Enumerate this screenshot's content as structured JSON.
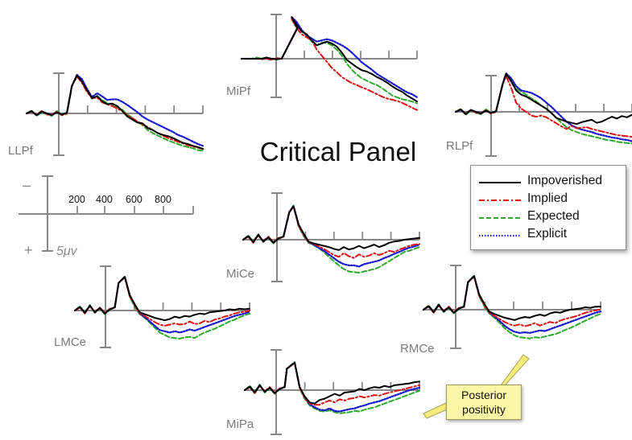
{
  "chart_data": {
    "type": "line",
    "title": "Critical Panel",
    "series": [
      {
        "name": "Impoverished",
        "color": "#000000",
        "dash": "solid"
      },
      {
        "name": "Implied",
        "color": "#dd1111",
        "dash": "dashdot"
      },
      {
        "name": "Expected",
        "color": "#2ea82e",
        "dash": "dashed"
      },
      {
        "name": "Explicit",
        "color": "#1a1acc",
        "dash": "dotted"
      }
    ],
    "scale_panel": {
      "negative_sign": "–",
      "positive_sign": "+",
      "amplitude_label": "5μv",
      "time_ticks": [
        "200",
        "400",
        "600",
        "800"
      ]
    },
    "annotation": {
      "line1": "Posterior",
      "line2": "positivity"
    },
    "electrodes": [
      {
        "label": "MiPf",
        "Impoverished": [
          0,
          0,
          0,
          0,
          0,
          -0.2,
          0,
          0.1,
          0,
          -5,
          -6.8,
          -5.5,
          -4.5,
          -4,
          -3,
          -2.2,
          -2.5,
          -2.8,
          -2.5,
          -2,
          -1,
          0.2,
          0.8,
          1.4,
          1.9,
          2.1,
          2.5,
          3,
          3.4,
          3.9,
          4.5,
          5,
          5.4,
          6,
          6.5,
          7
        ],
        "Implied": [
          0,
          0,
          0,
          0,
          0.1,
          0,
          0.2,
          -0.1,
          0,
          -5,
          -6.5,
          -5,
          -4,
          -3.5,
          -3,
          -1.5,
          -0.5,
          0.5,
          1.5,
          2.2,
          3,
          3.5,
          4,
          4.3,
          4.7,
          5,
          5.4,
          5.8,
          6.2,
          6.5,
          6.7,
          6.9,
          7.2,
          7.6,
          8,
          8.4
        ],
        "Expected": [
          0,
          0,
          0,
          -0.2,
          0,
          0,
          0.1,
          0,
          0,
          -5,
          -6.8,
          -5.8,
          -4.4,
          -3.8,
          -2.8,
          -2.2,
          -2.6,
          -2.6,
          -2.2,
          -1.5,
          -0.5,
          0.8,
          1.8,
          2.6,
          3.2,
          3.6,
          4,
          4.3,
          4.8,
          5.4,
          6,
          6.3,
          6.6,
          6.8,
          7,
          7.3
        ],
        "Explicit": [
          0,
          0,
          0,
          0,
          0,
          0,
          0,
          0,
          0,
          -5,
          -6.8,
          -6,
          -4.7,
          -3.8,
          -3.3,
          -2.8,
          -3,
          -3.2,
          -3,
          -2.6,
          -2.2,
          -1.7,
          -1,
          -0.2,
          0.6,
          1.2,
          1.8,
          2.5,
          3,
          3.5,
          4,
          4.5,
          5,
          5.5,
          5.8,
          6.3
        ]
      },
      {
        "label": "LLPf",
        "Impoverished": [
          0,
          -0.4,
          0.3,
          -0.3,
          0,
          0.3,
          -0.2,
          0.2,
          -0.1,
          -4.5,
          -6.2,
          -5.2,
          -3.8,
          -2.5,
          -2.8,
          -2,
          -1.5,
          -1.6,
          -1.2,
          -0.4,
          0.5,
          1,
          1.5,
          1.6,
          2.4,
          2.7,
          3.2,
          3.5,
          3.7,
          4,
          4.4,
          4.8,
          5,
          5.3,
          5.5,
          5.8
        ],
        "Implied": [
          0,
          -0.3,
          0.2,
          -0.4,
          0.2,
          0.2,
          -0.3,
          0.3,
          0,
          -4.5,
          -6,
          -5,
          -3.5,
          -2.5,
          -2.6,
          -1.8,
          -1.5,
          -1.2,
          -0.8,
          -0.4,
          0.3,
          0.8,
          1.3,
          1.8,
          2.2,
          2.7,
          3.2,
          3.6,
          4,
          4.3,
          4.6,
          4.9,
          5.2,
          5.4,
          5.6,
          5.8
        ],
        "Expected": [
          0,
          -0.5,
          0.4,
          -0.2,
          0.1,
          0.4,
          -0.4,
          0.1,
          0.1,
          -4.5,
          -6.3,
          -5.3,
          -3.8,
          -2.4,
          -2.9,
          -2.2,
          -1.7,
          -1.5,
          -1,
          -0.6,
          0.2,
          0.7,
          1.4,
          1.9,
          2.7,
          3.2,
          3.6,
          4,
          4.4,
          4.7,
          5,
          5.3,
          5.5,
          5.7,
          6,
          6.1
        ],
        "Explicit": [
          0,
          -0.3,
          0.3,
          -0.3,
          0,
          0.2,
          -0.2,
          0.2,
          -0.1,
          -4.5,
          -6.3,
          -5.6,
          -4,
          -2.7,
          -3.3,
          -2.8,
          -2.2,
          -2.3,
          -2.3,
          -1.9,
          -1.4,
          -0.8,
          -0.2,
          0.5,
          1,
          1.4,
          1.8,
          2.2,
          2.6,
          3,
          3.5,
          3.8,
          4.2,
          4.6,
          5,
          5.3
        ]
      },
      {
        "label": "RLPf",
        "Impoverished": [
          0,
          -0.4,
          0.4,
          -0.3,
          0,
          0.3,
          -0.2,
          0.2,
          -0.1,
          -4.5,
          -6.2,
          -5,
          -3.5,
          -2.8,
          -2.5,
          -2,
          -1.5,
          -1,
          -0.5,
          0.2,
          1,
          1.3,
          1.6,
          1.8,
          2,
          1.7,
          1.5,
          1.3,
          1.8,
          1.6,
          1.2,
          0.8,
          1.1,
          0.7,
          0.9,
          0.5
        ],
        "Implied": [
          0,
          -0.4,
          0.3,
          -0.3,
          0.2,
          0.2,
          -0.3,
          0.3,
          0,
          -4.5,
          -5.8,
          -4,
          -1.5,
          -0.5,
          0,
          0.6,
          0.8,
          0.6,
          0.9,
          1.4,
          1.9,
          2.4,
          2.8,
          2.3,
          2.7,
          2.6,
          2.5,
          2.8,
          3,
          3.2,
          3.4,
          3.6,
          3.8,
          3.9,
          4,
          4.1
        ],
        "Expected": [
          0,
          -0.5,
          0.5,
          -0.2,
          0.1,
          0.4,
          -0.4,
          0.1,
          0.1,
          -4.5,
          -6.3,
          -5.2,
          -3.8,
          -3.3,
          -2.8,
          -2.2,
          -1.7,
          -1,
          -0.5,
          0.2,
          1,
          1.8,
          2.5,
          3,
          3.3,
          3.6,
          3.8,
          4,
          4.2,
          4.4,
          4.6,
          4.7,
          4.9,
          5,
          5.1,
          5.2
        ],
        "Explicit": [
          0,
          -0.3,
          0.3,
          -0.3,
          0,
          0.2,
          -0.2,
          0.2,
          -0.1,
          -4.5,
          -6.3,
          -5.5,
          -4.2,
          -3.5,
          -3.3,
          -3.1,
          -2.7,
          -2.2,
          -1.5,
          -0.8,
          0,
          0.8,
          1.6,
          2.2,
          2.6,
          2.9,
          3.1,
          3.3,
          3.6,
          3.8,
          4,
          4.2,
          4.3,
          4.5,
          4.6,
          4.8
        ]
      },
      {
        "label": "MiCe",
        "Impoverished": [
          0,
          -0.6,
          0.4,
          -0.8,
          0.3,
          -0.4,
          0.5,
          -0.2,
          -0.5,
          -4.5,
          -5.5,
          -2.5,
          -1,
          0.3,
          0.6,
          0.8,
          1,
          1.2,
          1.5,
          1.7,
          1.2,
          1.6,
          1.4,
          1,
          1.4,
          1.1,
          0.8,
          1.2,
          0.9,
          0.5,
          0.3,
          0.2,
          0,
          -0.1,
          -0.2,
          -0.3
        ],
        "Implied": [
          0,
          -0.5,
          0.5,
          -0.7,
          0.2,
          -0.5,
          0.4,
          -0.3,
          -0.4,
          -4.5,
          -5.4,
          -2.3,
          -0.8,
          0.4,
          0.7,
          1.1,
          1.5,
          2,
          2.5,
          2.8,
          2.2,
          2.7,
          3,
          2.4,
          2.8,
          2.6,
          2.2,
          2.5,
          2.2,
          1.8,
          2,
          1.6,
          1.3,
          1,
          0.8,
          0.7
        ],
        "Expected": [
          0,
          -0.7,
          0.3,
          -0.9,
          0.4,
          -0.3,
          0.6,
          -0.1,
          -0.6,
          -4.5,
          -5.6,
          -2.2,
          -0.6,
          0.5,
          0.9,
          1.4,
          2,
          2.8,
          3.5,
          4.2,
          4.8,
          5.2,
          5.3,
          5.4,
          5.2,
          5,
          4.8,
          4.5,
          4,
          3.5,
          3,
          2.5,
          2,
          1.8,
          1.5,
          1.2
        ],
        "Explicit": [
          0,
          -0.5,
          0.4,
          -0.8,
          0.3,
          -0.4,
          0.5,
          -0.2,
          -0.5,
          -4.5,
          -5.5,
          -2.5,
          -0.9,
          0.4,
          0.8,
          1.3,
          1.8,
          2.4,
          3,
          3.6,
          4,
          4.2,
          4.2,
          4.4,
          4,
          3.8,
          3.6,
          3.4,
          3,
          2.7,
          2.3,
          2,
          1.6,
          1.3,
          1.1,
          0.8
        ]
      },
      {
        "label": "LMCe",
        "Impoverished": [
          0,
          -0.6,
          0.4,
          -0.8,
          0.3,
          -0.4,
          0.5,
          -0.2,
          -0.5,
          -4.5,
          -5.5,
          -2.5,
          -1,
          0.3,
          0.6,
          0.9,
          1.2,
          1.4,
          1.6,
          1.4,
          1,
          1.2,
          0.9,
          1,
          0.7,
          0.5,
          0.6,
          0.3,
          0.2,
          0.1,
          0,
          -0.2,
          -0.1,
          -0.3,
          -0.2,
          -0.3
        ],
        "Implied": [
          0,
          -0.5,
          0.5,
          -0.7,
          0.2,
          -0.5,
          0.4,
          -0.3,
          -0.4,
          -4.5,
          -5.4,
          -2.3,
          -0.8,
          0.5,
          0.9,
          1.4,
          1.9,
          2.3,
          2.5,
          2.3,
          2.1,
          2.3,
          2.2,
          1.8,
          2.2,
          2.1,
          1.7,
          1.9,
          1.5,
          1.3,
          1,
          0.8,
          0.5,
          0.3,
          0.2,
          0
        ],
        "Expected": [
          0,
          -0.7,
          0.3,
          -0.9,
          0.4,
          -0.3,
          0.6,
          -0.1,
          -0.6,
          -4.5,
          -5.6,
          -2.2,
          -0.6,
          0.6,
          1.2,
          2,
          2.8,
          3.6,
          4,
          4.4,
          4.5,
          4.6,
          4.4,
          4.3,
          4.5,
          4,
          3.6,
          3.3,
          3,
          2.6,
          2.2,
          1.8,
          1.5,
          1.1,
          0.8,
          0.5
        ],
        "Explicit": [
          0,
          -0.5,
          0.4,
          -0.8,
          0.3,
          -0.4,
          0.5,
          -0.2,
          -0.5,
          -4.5,
          -5.5,
          -2.5,
          -0.9,
          0.5,
          1.1,
          1.8,
          2.5,
          3.2,
          3.4,
          3.6,
          3.4,
          3.6,
          3.4,
          3.1,
          3.3,
          3,
          2.7,
          2.4,
          2.1,
          1.8,
          1.5,
          1.2,
          0.9,
          0.7,
          0.5,
          0.2
        ]
      },
      {
        "label": "RMCe",
        "Impoverished": [
          0,
          -0.6,
          0.4,
          -0.8,
          0.3,
          -0.4,
          0.5,
          -0.2,
          -0.5,
          -4.5,
          -5.5,
          -2.5,
          -1,
          0.3,
          0.7,
          1,
          1.3,
          1.5,
          1.7,
          1.4,
          1.2,
          1.3,
          1,
          0.8,
          1,
          0.6,
          0.4,
          0.5,
          0.2,
          0,
          -0.1,
          -0.2,
          -0.4,
          -0.3,
          -0.5,
          -0.5
        ],
        "Implied": [
          0,
          -0.5,
          0.5,
          -0.7,
          0.2,
          -0.5,
          0.4,
          -0.3,
          -0.4,
          -4.5,
          -5.4,
          -2.3,
          -0.8,
          0.5,
          1,
          1.5,
          2,
          2.4,
          2.6,
          2.4,
          2.7,
          2.5,
          2.2,
          2.6,
          2.3,
          2,
          2.2,
          1.8,
          1.5,
          1.3,
          1.1,
          0.8,
          0.5,
          0.3,
          0.1,
          0
        ],
        "Expected": [
          0,
          -0.7,
          0.3,
          -0.9,
          0.4,
          -0.3,
          0.6,
          -0.1,
          -0.6,
          -4.5,
          -5.6,
          -2.2,
          -0.6,
          0.6,
          1.3,
          2.1,
          3,
          3.7,
          4.2,
          4.5,
          4.6,
          4.7,
          4.5,
          4.6,
          4.4,
          4.2,
          4,
          3.7,
          3.3,
          3,
          2.6,
          2.2,
          1.8,
          1.4,
          1,
          0.7
        ],
        "Explicit": [
          0,
          -0.5,
          0.4,
          -0.8,
          0.3,
          -0.4,
          0.5,
          -0.2,
          -0.5,
          -4.5,
          -5.5,
          -2.5,
          -0.9,
          0.5,
          1.1,
          1.8,
          2.6,
          3.2,
          3.6,
          3.8,
          3.7,
          3.8,
          3.6,
          3.4,
          3.5,
          3.2,
          2.9,
          2.6,
          2.3,
          2,
          1.7,
          1.4,
          1.1,
          0.8,
          0.5,
          0.3
        ]
      },
      {
        "label": "MiPa",
        "Impoverished": [
          0,
          -0.6,
          0.4,
          -0.8,
          0.3,
          -0.4,
          0.5,
          -0.2,
          -0.5,
          -3.5,
          -4.5,
          -0.5,
          1,
          2,
          2.2,
          1.6,
          1.4,
          1,
          0.6,
          0.9,
          0.4,
          0.3,
          0.2,
          -0.2,
          0,
          -0.3,
          -0.5,
          -0.4,
          -0.7,
          -0.5,
          -0.8,
          -0.9,
          -1,
          -1.1,
          -1.3,
          -1.4
        ],
        "Implied": [
          0,
          -0.5,
          0.5,
          -0.7,
          0.2,
          -0.5,
          0.4,
          -0.3,
          -0.4,
          -3.5,
          -4.4,
          -0.4,
          1.2,
          2.2,
          2.4,
          2.4,
          2,
          1.7,
          2,
          1.5,
          1.7,
          1.4,
          1.3,
          1,
          1.2,
          1,
          0.8,
          0.9,
          0.6,
          0.4,
          0.2,
          0,
          -0.2,
          -0.4,
          -0.6,
          -0.8
        ],
        "Expected": [
          0,
          -0.7,
          0.3,
          -0.9,
          0.4,
          -0.3,
          0.6,
          -0.1,
          -0.6,
          -3.5,
          -4.6,
          -0.3,
          1.4,
          2.5,
          3,
          3.4,
          3.5,
          3.3,
          3.6,
          3.8,
          3.7,
          3.6,
          3.4,
          3.5,
          3.2,
          3,
          2.8,
          2.5,
          2.2,
          1.9,
          1.6,
          1.3,
          1,
          0.7,
          0.4,
          0.1
        ],
        "Explicit": [
          0,
          -0.5,
          0.4,
          -0.8,
          0.3,
          -0.4,
          0.5,
          -0.2,
          -0.5,
          -3.5,
          -4.5,
          -0.5,
          1.2,
          2.3,
          2.8,
          3.2,
          3.3,
          3,
          3.4,
          3.5,
          3.3,
          3.1,
          3,
          2.7,
          2.5,
          2.2,
          2,
          1.8,
          1.5,
          1.2,
          0.9,
          0.6,
          0.3,
          0,
          -0.2,
          -0.4
        ]
      }
    ]
  }
}
